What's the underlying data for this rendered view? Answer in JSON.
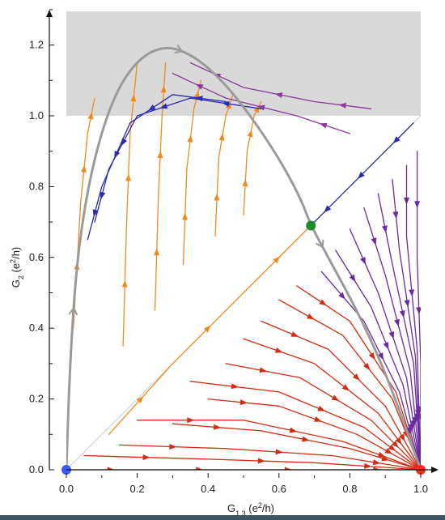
{
  "chart_data": {
    "type": "scatter",
    "title": "",
    "xlabel": {
      "base": "G",
      "sub": "1,3",
      "unit_open": " (e",
      "unit_sup": "2",
      "unit_close": "/h)"
    },
    "ylabel": {
      "base": "G",
      "sub": "2",
      "unit_open": " (e",
      "unit_sup": "2",
      "unit_close": "/h)"
    },
    "xlim": [
      0,
      1
    ],
    "ylim": [
      0,
      1.3
    ],
    "x_ticks": [
      "0.0",
      "0.2",
      "0.4",
      "0.6",
      "0.8",
      "1.0"
    ],
    "x_tick_values": [
      0,
      0.2,
      0.4,
      0.6,
      0.8,
      1.0
    ],
    "y_ticks": [
      "0.0",
      "0.2",
      "0.4",
      "0.6",
      "0.8",
      "1.0",
      "1.2"
    ],
    "y_tick_values": [
      0,
      0.2,
      0.4,
      0.6,
      0.8,
      1.0,
      1.2
    ],
    "shaded_region": {
      "y_from": 1.0,
      "y_to": 1.3,
      "color": "#d9d9d9"
    },
    "diagonal": {
      "from": [
        0,
        0
      ],
      "to": [
        1,
        1
      ],
      "color": "#cccccc"
    },
    "fixed_points": [
      {
        "name": "origin",
        "x": 0.0,
        "y": 0.0,
        "color": "#3b5cff"
      },
      {
        "name": "diagonal",
        "x": 0.69,
        "y": 0.69,
        "color": "#1f8a2a"
      },
      {
        "name": "corner",
        "x": 1.0,
        "y": 0.0,
        "color": "#ff2a1a"
      }
    ],
    "separatrix": {
      "color": "#9a9a9a",
      "points": [
        [
          0.0,
          0.0
        ],
        [
          0.01,
          0.3
        ],
        [
          0.03,
          0.6
        ],
        [
          0.07,
          0.85
        ],
        [
          0.13,
          1.05
        ],
        [
          0.2,
          1.16
        ],
        [
          0.28,
          1.2
        ],
        [
          0.36,
          1.17
        ],
        [
          0.44,
          1.1
        ],
        [
          0.52,
          1.0
        ],
        [
          0.6,
          0.88
        ],
        [
          0.66,
          0.77
        ],
        [
          0.69,
          0.69
        ],
        [
          0.75,
          0.58
        ],
        [
          0.82,
          0.45
        ],
        [
          0.89,
          0.3
        ],
        [
          0.95,
          0.14
        ],
        [
          1.0,
          0.0
        ]
      ]
    },
    "flow_families": [
      {
        "name": "red",
        "color": "#d62a10",
        "lines": [
          [
            [
              0.0,
              0.0
            ],
            [
              0.25,
              0.0
            ],
            [
              0.5,
              0.0
            ],
            [
              0.75,
              0.0
            ],
            [
              1.0,
              0.0
            ]
          ],
          [
            [
              0.05,
              0.04
            ],
            [
              0.4,
              0.03
            ],
            [
              0.7,
              0.02
            ],
            [
              1.0,
              0.0
            ]
          ],
          [
            [
              0.15,
              0.07
            ],
            [
              0.45,
              0.06
            ],
            [
              0.75,
              0.04
            ],
            [
              1.0,
              0.0
            ]
          ],
          [
            [
              0.3,
              0.13
            ],
            [
              0.55,
              0.11
            ],
            [
              0.8,
              0.06
            ],
            [
              1.0,
              0.0
            ]
          ],
          [
            [
              0.2,
              0.14
            ],
            [
              0.5,
              0.14
            ],
            [
              0.78,
              0.08
            ],
            [
              1.0,
              0.0
            ]
          ],
          [
            [
              0.4,
              0.2
            ],
            [
              0.6,
              0.18
            ],
            [
              0.82,
              0.1
            ],
            [
              1.0,
              0.0
            ]
          ],
          [
            [
              0.35,
              0.25
            ],
            [
              0.6,
              0.22
            ],
            [
              0.84,
              0.12
            ],
            [
              1.0,
              0.0
            ]
          ],
          [
            [
              0.45,
              0.3
            ],
            [
              0.66,
              0.26
            ],
            [
              0.86,
              0.14
            ],
            [
              1.0,
              0.0
            ]
          ],
          [
            [
              0.5,
              0.37
            ],
            [
              0.7,
              0.3
            ],
            [
              0.88,
              0.16
            ],
            [
              1.0,
              0.0
            ]
          ],
          [
            [
              0.55,
              0.42
            ],
            [
              0.74,
              0.34
            ],
            [
              0.9,
              0.18
            ],
            [
              1.0,
              0.0
            ]
          ],
          [
            [
              0.6,
              0.48
            ],
            [
              0.78,
              0.38
            ],
            [
              0.92,
              0.2
            ],
            [
              1.0,
              0.0
            ]
          ],
          [
            [
              0.65,
              0.52
            ],
            [
              0.8,
              0.42
            ],
            [
              0.93,
              0.22
            ],
            [
              1.0,
              0.0
            ]
          ]
        ]
      },
      {
        "name": "purple",
        "color": "#6a2aa0",
        "lines": [
          [
            [
              0.72,
              0.56
            ],
            [
              0.84,
              0.42
            ],
            [
              0.94,
              0.22
            ],
            [
              1.0,
              0.0
            ]
          ],
          [
            [
              0.76,
              0.62
            ],
            [
              0.86,
              0.46
            ],
            [
              0.95,
              0.24
            ],
            [
              1.0,
              0.0
            ]
          ],
          [
            [
              0.8,
              0.68
            ],
            [
              0.88,
              0.5
            ],
            [
              0.96,
              0.26
            ],
            [
              1.0,
              0.0
            ]
          ],
          [
            [
              0.84,
              0.74
            ],
            [
              0.9,
              0.55
            ],
            [
              0.97,
              0.28
            ],
            [
              1.0,
              0.0
            ]
          ],
          [
            [
              0.88,
              0.78
            ],
            [
              0.92,
              0.58
            ],
            [
              0.98,
              0.3
            ],
            [
              1.0,
              0.0
            ]
          ],
          [
            [
              0.92,
              0.82
            ],
            [
              0.94,
              0.62
            ],
            [
              0.985,
              0.32
            ],
            [
              1.0,
              0.0
            ]
          ],
          [
            [
              0.96,
              0.86
            ],
            [
              0.96,
              0.66
            ],
            [
              0.99,
              0.34
            ],
            [
              1.0,
              0.0
            ]
          ],
          [
            [
              0.99,
              0.9
            ],
            [
              0.99,
              0.6
            ],
            [
              1.0,
              0.3
            ],
            [
              1.0,
              0.0
            ]
          ]
        ]
      },
      {
        "name": "orange",
        "color": "#f08a20",
        "lines": [
          [
            [
              0.02,
              0.4
            ],
            [
              0.04,
              0.75
            ],
            [
              0.06,
              0.95
            ],
            [
              0.08,
              1.05
            ]
          ],
          [
            [
              0.16,
              0.35
            ],
            [
              0.17,
              0.7
            ],
            [
              0.18,
              0.95
            ],
            [
              0.2,
              1.15
            ]
          ],
          [
            [
              0.25,
              0.45
            ],
            [
              0.26,
              0.78
            ],
            [
              0.27,
              1.0
            ],
            [
              0.28,
              1.15
            ]
          ],
          [
            [
              0.33,
              0.58
            ],
            [
              0.34,
              0.85
            ],
            [
              0.36,
              1.02
            ],
            [
              0.38,
              1.1
            ]
          ],
          [
            [
              0.42,
              0.66
            ],
            [
              0.43,
              0.88
            ],
            [
              0.45,
              1.0
            ],
            [
              0.47,
              1.06
            ]
          ],
          [
            [
              0.5,
              0.72
            ],
            [
              0.51,
              0.9
            ],
            [
              0.53,
              1.0
            ],
            [
              0.55,
              1.04
            ]
          ],
          [
            [
              0.12,
              0.1
            ],
            [
              0.3,
              0.3
            ],
            [
              0.5,
              0.5
            ],
            [
              0.69,
              0.69
            ]
          ]
        ]
      },
      {
        "name": "blue",
        "color": "#2a2ab0",
        "lines": [
          [
            [
              0.98,
              0.98
            ],
            [
              0.88,
              0.88
            ],
            [
              0.78,
              0.78
            ],
            [
              0.69,
              0.69
            ]
          ],
          [
            [
              0.55,
              1.02
            ],
            [
              0.35,
              1.05
            ],
            [
              0.2,
              1.0
            ],
            [
              0.12,
              0.85
            ],
            [
              0.08,
              0.7
            ]
          ],
          [
            [
              0.45,
              1.04
            ],
            [
              0.3,
              1.06
            ],
            [
              0.18,
              0.98
            ],
            [
              0.1,
              0.8
            ],
            [
              0.06,
              0.65
            ]
          ]
        ]
      },
      {
        "name": "violet",
        "color": "#8a3a9a",
        "lines": [
          [
            [
              0.86,
              1.02
            ],
            [
              0.7,
              1.04
            ],
            [
              0.5,
              1.08
            ],
            [
              0.35,
              1.15
            ]
          ],
          [
            [
              0.8,
              0.95
            ],
            [
              0.65,
              1.0
            ],
            [
              0.45,
              1.05
            ],
            [
              0.3,
              1.12
            ]
          ]
        ]
      }
    ]
  }
}
